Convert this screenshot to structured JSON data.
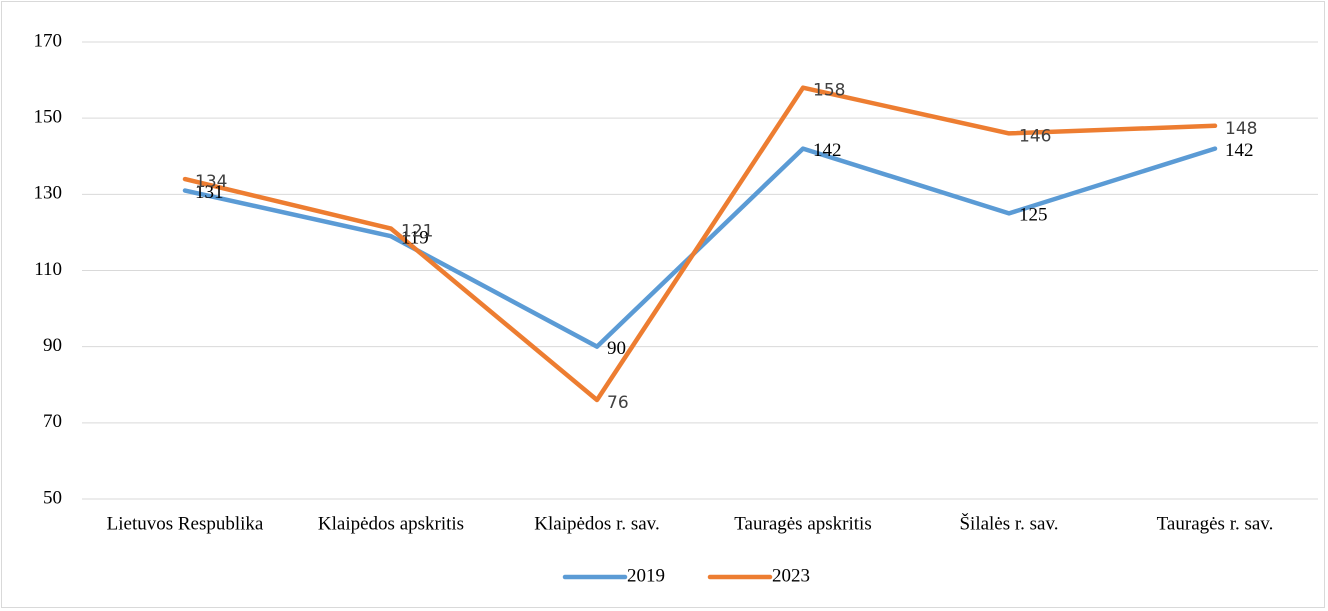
{
  "chart_data": {
    "type": "line",
    "categories": [
      "Lietuvos Respublika",
      "Klaipėdos apskritis",
      "Klaipėdos r. sav.",
      "Tauragės apskritis",
      "Šilalės r. sav.",
      "Tauragės r. sav."
    ],
    "series": [
      {
        "name": "2019",
        "color": "#5b9bd5",
        "values": [
          131,
          119,
          90,
          142,
          125,
          142
        ]
      },
      {
        "name": "2023",
        "color": "#ed7d31",
        "values": [
          134,
          121,
          76,
          158,
          146,
          148
        ]
      }
    ],
    "ylim": [
      50,
      170
    ],
    "yticks": [
      50,
      70,
      90,
      110,
      130,
      150,
      170
    ],
    "grid": true,
    "data_labels": true,
    "legend": "bottom"
  }
}
